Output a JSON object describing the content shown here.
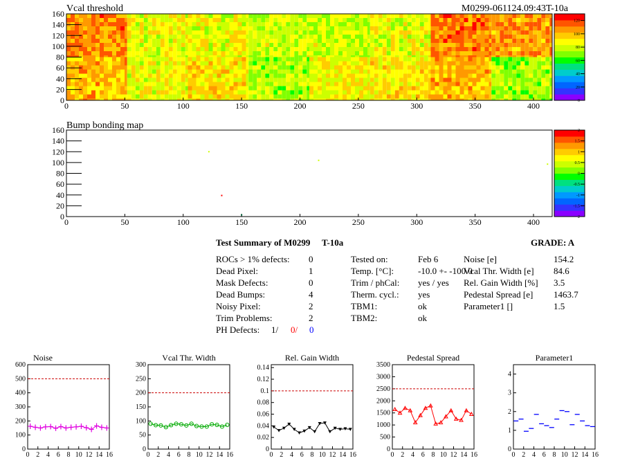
{
  "header": {
    "vcal_title": "Vcal threshold",
    "module_id": "M0299-061124.09:43T-10a",
    "bump_title": "Bump bonding map"
  },
  "colors": {
    "palette": [
      "#8a00ff",
      "#3333ff",
      "#0066ff",
      "#0099ff",
      "#00cccc",
      "#00e080",
      "#00ff00",
      "#80ff00",
      "#ccff00",
      "#ffff00",
      "#ffcc00",
      "#ff9900",
      "#ff5500",
      "#ff0000"
    ],
    "noise": "#e000e0",
    "vcal_width": "#00aa00",
    "gain": "#000000",
    "pedestal": "#ff0000",
    "parameter1": "#0000ff",
    "limit": "#cc0000"
  },
  "summary": {
    "title": "Test Summary of M0299",
    "temp_tag": "T-10a",
    "grade_label": "GRADE:  A",
    "left": [
      {
        "label": "ROCs > 1% defects:",
        "value": "0"
      },
      {
        "label": "Dead Pixel:",
        "value": "1"
      },
      {
        "label": "Mask Defects:",
        "value": "0"
      },
      {
        "label": "Dead Bumps:",
        "value": "4"
      },
      {
        "label": "Noisy Pixel:",
        "value": "2"
      },
      {
        "label": "Trim Problems:",
        "value": "2"
      }
    ],
    "ph_label": "PH Defects:",
    "ph_values": [
      "1/",
      "0/",
      "0"
    ],
    "middle": [
      {
        "label": "Tested on:",
        "value": "Feb 6"
      },
      {
        "label": "Temp. [°C]:",
        "value": "-10.0 +- -100.0"
      },
      {
        "label": "Trim / phCal:",
        "value": "yes / yes"
      },
      {
        "label": "Therm. cycl.:",
        "value": "yes"
      },
      {
        "label": "TBM1:",
        "value": "ok"
      },
      {
        "label": "TBM2:",
        "value": "ok"
      }
    ],
    "right": [
      {
        "label": "Noise [e]",
        "value": "154.2"
      },
      {
        "label": "Vcal Thr. Width [e]",
        "value": "84.6"
      },
      {
        "label": "Rel. Gain Width [%]",
        "value": "3.5"
      },
      {
        "label": "Pedestal Spread [e]",
        "value": "1463.7"
      },
      {
        "label": "Parameter1 []",
        "value": "1.5"
      }
    ]
  },
  "chart_data": [
    {
      "type": "heatmap",
      "title": "Vcal threshold",
      "xlim": [
        0,
        416
      ],
      "ylim": [
        0,
        160
      ],
      "xticks": [
        "0",
        "50",
        "100",
        "150",
        "200",
        "250",
        "300",
        "350",
        "400"
      ],
      "yticks": [
        "0",
        "20",
        "40",
        "60",
        "80",
        "100",
        "120",
        "140",
        "160"
      ],
      "zlim": [
        0,
        130
      ],
      "zticks": [
        "0",
        "20",
        "40",
        "60",
        "80",
        "100",
        "120"
      ],
      "rows": [
        [
          100,
          85,
          92,
          75,
          88,
          92,
          100,
          75
        ],
        [
          108,
          85,
          85,
          80,
          80,
          85,
          110,
          105
        ]
      ]
    },
    {
      "type": "scatter",
      "title": "Bump bonding map",
      "xlim": [
        0,
        416
      ],
      "ylim": [
        0,
        160
      ],
      "xticks": [
        "0",
        "50",
        "100",
        "150",
        "200",
        "250",
        "300",
        "350",
        "400"
      ],
      "yticks": [
        "0",
        "20",
        "40",
        "60",
        "80",
        "100",
        "120",
        "140",
        "160"
      ],
      "zlim": [
        -2,
        2
      ],
      "zticks": [
        "-2",
        "-1.5",
        "-1",
        "-0.5",
        "0",
        "0.5",
        "1",
        "1.5",
        "2"
      ],
      "points": [
        {
          "x": 122,
          "y": 120,
          "z": 0.3
        },
        {
          "x": 216,
          "y": 104,
          "z": 0.3
        },
        {
          "x": 133,
          "y": 39,
          "z": 2.0
        },
        {
          "x": 150,
          "y": 3,
          "z": -0.5
        },
        {
          "x": 412,
          "y": 97,
          "z": 0.3
        }
      ]
    },
    {
      "type": "line",
      "title": "Noise",
      "x": [
        0,
        1,
        2,
        3,
        4,
        5,
        6,
        7,
        8,
        9,
        10,
        11,
        12,
        13,
        14,
        15
      ],
      "values": [
        162,
        155,
        150,
        158,
        160,
        148,
        160,
        150,
        155,
        158,
        162,
        152,
        140,
        165,
        155,
        150
      ],
      "limit": 500,
      "xlim": [
        0,
        16
      ],
      "ylim": [
        0,
        600
      ],
      "xticks": [
        "0",
        "2",
        "4",
        "6",
        "8",
        "10",
        "12",
        "14",
        "16"
      ],
      "yticks": [
        "0",
        "100",
        "200",
        "300",
        "400",
        "500",
        "600"
      ]
    },
    {
      "type": "line",
      "title": "Vcal Thr. Width",
      "x": [
        0,
        1,
        2,
        3,
        4,
        5,
        6,
        7,
        8,
        9,
        10,
        11,
        12,
        13,
        14,
        15
      ],
      "values": [
        90,
        85,
        84,
        78,
        85,
        90,
        88,
        84,
        90,
        82,
        80,
        80,
        88,
        86,
        80,
        86
      ],
      "limit": 200,
      "xlim": [
        0,
        16
      ],
      "ylim": [
        0,
        300
      ],
      "xticks": [
        "0",
        "2",
        "4",
        "6",
        "8",
        "10",
        "12",
        "14",
        "16"
      ],
      "yticks": [
        "0",
        "50",
        "100",
        "150",
        "200",
        "250",
        "300"
      ]
    },
    {
      "type": "line",
      "title": "Rel. Gain Width",
      "x": [
        0,
        1,
        2,
        3,
        4,
        5,
        6,
        7,
        8,
        9,
        10,
        11,
        12,
        13,
        14,
        15
      ],
      "values": [
        0.038,
        0.032,
        0.036,
        0.043,
        0.034,
        0.028,
        0.031,
        0.037,
        0.03,
        0.044,
        0.045,
        0.03,
        0.036,
        0.034,
        0.035,
        0.034
      ],
      "limit": 0.1,
      "xlim": [
        0,
        16
      ],
      "ylim": [
        0,
        0.145
      ],
      "xticks": [
        "0",
        "2",
        "4",
        "6",
        "8",
        "10",
        "12",
        "14",
        "16"
      ],
      "yticks": [
        "0",
        "0.02",
        "0.04",
        "0.06",
        "0.08",
        "0.1",
        "0.12",
        "0.14"
      ]
    },
    {
      "type": "line",
      "title": "Pedestal Spread",
      "x": [
        0,
        1,
        2,
        3,
        4,
        5,
        6,
        7,
        8,
        9,
        10,
        11,
        12,
        13,
        14,
        15
      ],
      "values": [
        1650,
        1500,
        1700,
        1600,
        1100,
        1400,
        1700,
        1800,
        1050,
        1100,
        1350,
        1600,
        1250,
        1200,
        1600,
        1450
      ],
      "limit": 2500,
      "xlim": [
        0,
        16
      ],
      "ylim": [
        0,
        3500
      ],
      "xticks": [
        "0",
        "2",
        "4",
        "6",
        "8",
        "10",
        "12",
        "14",
        "16"
      ],
      "yticks": [
        "0",
        "500",
        "1000",
        "1500",
        "2000",
        "2500",
        "3000",
        "3500"
      ]
    },
    {
      "type": "line",
      "title": "Parameter1",
      "x": [
        0,
        1,
        2,
        3,
        4,
        5,
        6,
        7,
        8,
        9,
        10,
        11,
        12,
        13,
        14,
        15
      ],
      "values": [
        1.5,
        1.6,
        0.95,
        1.1,
        1.85,
        1.35,
        1.25,
        1.15,
        1.6,
        2.05,
        2.0,
        1.3,
        1.85,
        1.5,
        1.25,
        1.2
      ],
      "xlim": [
        0,
        16
      ],
      "ylim": [
        0,
        4.5
      ],
      "xticks": [
        "0",
        "2",
        "4",
        "6",
        "8",
        "10",
        "12",
        "14",
        "16"
      ],
      "yticks": [
        "0",
        "1",
        "2",
        "3",
        "4"
      ]
    }
  ]
}
